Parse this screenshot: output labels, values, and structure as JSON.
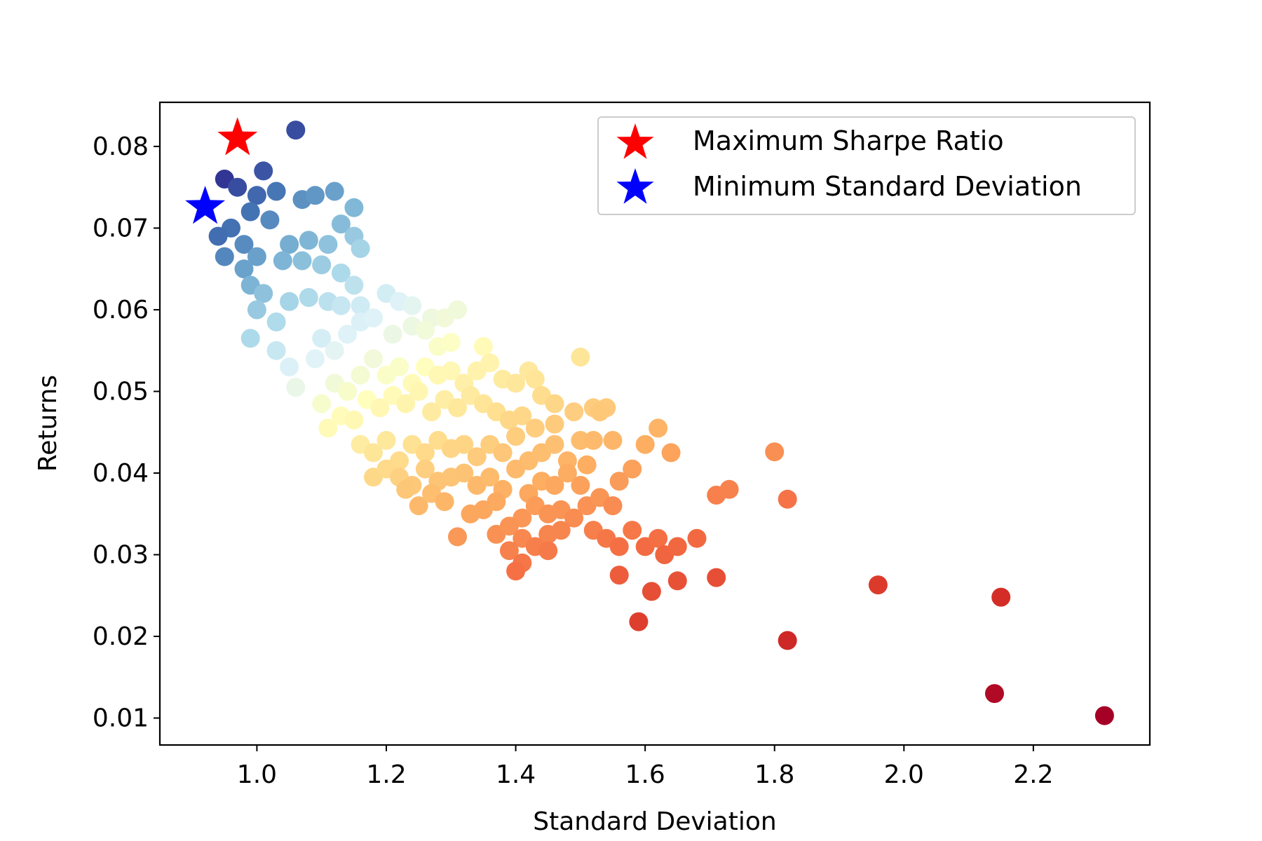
{
  "chart_data": {
    "type": "scatter",
    "title": "",
    "xlabel": "Standard Deviation",
    "ylabel": "Returns",
    "xlim": [
      0.85,
      2.38
    ],
    "ylim": [
      0.0067,
      0.0854
    ],
    "xticks": [
      1.0,
      1.2,
      1.4,
      1.6,
      1.8,
      2.0,
      2.2
    ],
    "xtick_labels": [
      "1.0",
      "1.2",
      "1.4",
      "1.6",
      "1.8",
      "2.0",
      "2.2"
    ],
    "yticks": [
      0.01,
      0.02,
      0.03,
      0.04,
      0.05,
      0.06,
      0.07,
      0.08
    ],
    "ytick_labels": [
      "0.01",
      "0.02",
      "0.03",
      "0.04",
      "0.05",
      "0.06",
      "0.07",
      "0.08"
    ],
    "grid": false,
    "legend_position": "top-right",
    "colormap": "RdYlBu (colored by Sharpe ratio)",
    "portfolios": {
      "name": "",
      "points": [
        [
          1.06,
          0.082
        ],
        [
          0.95,
          0.076
        ],
        [
          1.01,
          0.077
        ],
        [
          0.97,
          0.075
        ],
        [
          1.0,
          0.074
        ],
        [
          1.03,
          0.0745
        ],
        [
          0.99,
          0.072
        ],
        [
          0.96,
          0.07
        ],
        [
          0.94,
          0.069
        ],
        [
          0.95,
          0.0665
        ],
        [
          0.98,
          0.068
        ],
        [
          1.02,
          0.071
        ],
        [
          1.07,
          0.0735
        ],
        [
          1.09,
          0.074
        ],
        [
          1.12,
          0.0745
        ],
        [
          1.15,
          0.0725
        ],
        [
          1.13,
          0.0705
        ],
        [
          1.15,
          0.069
        ],
        [
          1.11,
          0.068
        ],
        [
          1.16,
          0.0675
        ],
        [
          1.08,
          0.0685
        ],
        [
          1.05,
          0.068
        ],
        [
          1.0,
          0.0665
        ],
        [
          0.98,
          0.065
        ],
        [
          1.04,
          0.066
        ],
        [
          1.07,
          0.066
        ],
        [
          1.1,
          0.0655
        ],
        [
          1.13,
          0.0645
        ],
        [
          1.15,
          0.063
        ],
        [
          0.99,
          0.063
        ],
        [
          1.01,
          0.062
        ],
        [
          1.0,
          0.06
        ],
        [
          0.99,
          0.0565
        ],
        [
          1.03,
          0.0585
        ],
        [
          1.05,
          0.061
        ],
        [
          1.08,
          0.0615
        ],
        [
          1.11,
          0.061
        ],
        [
          1.13,
          0.0605
        ],
        [
          1.16,
          0.0605
        ],
        [
          1.03,
          0.055
        ],
        [
          1.05,
          0.053
        ],
        [
          1.06,
          0.0505
        ],
        [
          1.09,
          0.054
        ],
        [
          1.1,
          0.0565
        ],
        [
          1.12,
          0.055
        ],
        [
          1.14,
          0.057
        ],
        [
          1.16,
          0.0585
        ],
        [
          1.2,
          0.062
        ],
        [
          1.22,
          0.061
        ],
        [
          1.24,
          0.0605
        ],
        [
          1.27,
          0.059
        ],
        [
          1.29,
          0.059
        ],
        [
          1.31,
          0.06
        ],
        [
          1.18,
          0.059
        ],
        [
          1.21,
          0.057
        ],
        [
          1.24,
          0.058
        ],
        [
          1.26,
          0.0575
        ],
        [
          1.28,
          0.0555
        ],
        [
          1.3,
          0.056
        ],
        [
          1.35,
          0.0555
        ],
        [
          1.5,
          0.0542
        ],
        [
          1.1,
          0.0485
        ],
        [
          1.12,
          0.051
        ],
        [
          1.14,
          0.05
        ],
        [
          1.16,
          0.052
        ],
        [
          1.18,
          0.054
        ],
        [
          1.2,
          0.052
        ],
        [
          1.22,
          0.053
        ],
        [
          1.24,
          0.051
        ],
        [
          1.26,
          0.053
        ],
        [
          1.28,
          0.052
        ],
        [
          1.3,
          0.0525
        ],
        [
          1.32,
          0.051
        ],
        [
          1.34,
          0.0525
        ],
        [
          1.36,
          0.0535
        ],
        [
          1.38,
          0.0515
        ],
        [
          1.4,
          0.051
        ],
        [
          1.42,
          0.0525
        ],
        [
          1.43,
          0.0515
        ],
        [
          1.44,
          0.0495
        ],
        [
          1.11,
          0.0455
        ],
        [
          1.13,
          0.047
        ],
        [
          1.15,
          0.0465
        ],
        [
          1.17,
          0.049
        ],
        [
          1.19,
          0.048
        ],
        [
          1.21,
          0.0495
        ],
        [
          1.23,
          0.0485
        ],
        [
          1.25,
          0.05
        ],
        [
          1.27,
          0.0475
        ],
        [
          1.29,
          0.049
        ],
        [
          1.31,
          0.048
        ],
        [
          1.33,
          0.0495
        ],
        [
          1.35,
          0.0485
        ],
        [
          1.37,
          0.0475
        ],
        [
          1.39,
          0.0465
        ],
        [
          1.41,
          0.047
        ],
        [
          1.43,
          0.0455
        ],
        [
          1.46,
          0.0485
        ],
        [
          1.46,
          0.046
        ],
        [
          1.49,
          0.0475
        ],
        [
          1.52,
          0.048
        ],
        [
          1.54,
          0.048
        ],
        [
          1.53,
          0.0475
        ],
        [
          1.16,
          0.0435
        ],
        [
          1.18,
          0.0425
        ],
        [
          1.2,
          0.044
        ],
        [
          1.22,
          0.0415
        ],
        [
          1.24,
          0.0435
        ],
        [
          1.26,
          0.0425
        ],
        [
          1.28,
          0.044
        ],
        [
          1.3,
          0.043
        ],
        [
          1.32,
          0.0435
        ],
        [
          1.34,
          0.042
        ],
        [
          1.36,
          0.0435
        ],
        [
          1.38,
          0.0425
        ],
        [
          1.4,
          0.0445
        ],
        [
          1.42,
          0.0415
        ],
        [
          1.44,
          0.0425
        ],
        [
          1.46,
          0.0435
        ],
        [
          1.48,
          0.0415
        ],
        [
          1.5,
          0.044
        ],
        [
          1.52,
          0.044
        ],
        [
          1.55,
          0.044
        ],
        [
          1.6,
          0.0435
        ],
        [
          1.62,
          0.0455
        ],
        [
          1.64,
          0.0425
        ],
        [
          1.18,
          0.0395
        ],
        [
          1.2,
          0.0405
        ],
        [
          1.22,
          0.0395
        ],
        [
          1.24,
          0.0385
        ],
        [
          1.26,
          0.0405
        ],
        [
          1.28,
          0.039
        ],
        [
          1.3,
          0.0395
        ],
        [
          1.32,
          0.04
        ],
        [
          1.34,
          0.0385
        ],
        [
          1.36,
          0.0395
        ],
        [
          1.38,
          0.038
        ],
        [
          1.4,
          0.0405
        ],
        [
          1.42,
          0.0375
        ],
        [
          1.44,
          0.039
        ],
        [
          1.46,
          0.0385
        ],
        [
          1.48,
          0.04
        ],
        [
          1.5,
          0.0385
        ],
        [
          1.51,
          0.041
        ],
        [
          1.56,
          0.039
        ],
        [
          1.58,
          0.0405
        ],
        [
          1.23,
          0.038
        ],
        [
          1.25,
          0.036
        ],
        [
          1.27,
          0.0375
        ],
        [
          1.29,
          0.0365
        ],
        [
          1.33,
          0.035
        ],
        [
          1.35,
          0.0355
        ],
        [
          1.37,
          0.0365
        ],
        [
          1.41,
          0.0345
        ],
        [
          1.43,
          0.036
        ],
        [
          1.45,
          0.035
        ],
        [
          1.47,
          0.0355
        ],
        [
          1.49,
          0.0345
        ],
        [
          1.51,
          0.036
        ],
        [
          1.53,
          0.037
        ],
        [
          1.55,
          0.036
        ],
        [
          1.31,
          0.0322
        ],
        [
          1.37,
          0.0325
        ],
        [
          1.39,
          0.0335
        ],
        [
          1.41,
          0.032
        ],
        [
          1.45,
          0.0325
        ],
        [
          1.47,
          0.033
        ],
        [
          1.52,
          0.033
        ],
        [
          1.54,
          0.032
        ],
        [
          1.39,
          0.0305
        ],
        [
          1.41,
          0.029
        ],
        [
          1.43,
          0.031
        ],
        [
          1.45,
          0.0305
        ],
        [
          1.4,
          0.028
        ],
        [
          1.56,
          0.031
        ],
        [
          1.58,
          0.033
        ],
        [
          1.6,
          0.031
        ],
        [
          1.62,
          0.032
        ],
        [
          1.63,
          0.03
        ],
        [
          1.65,
          0.031
        ],
        [
          1.68,
          0.032
        ],
        [
          1.56,
          0.0275
        ],
        [
          1.61,
          0.0255
        ],
        [
          1.65,
          0.0268
        ],
        [
          1.71,
          0.0272
        ],
        [
          1.59,
          0.0218
        ],
        [
          1.71,
          0.0373
        ],
        [
          1.73,
          0.038
        ],
        [
          1.8,
          0.0426
        ],
        [
          1.82,
          0.0368
        ],
        [
          1.96,
          0.0263
        ],
        [
          2.15,
          0.0248
        ],
        [
          1.82,
          0.0195
        ],
        [
          2.14,
          0.013
        ],
        [
          2.31,
          0.0103
        ]
      ]
    },
    "markers": [
      {
        "name": "Maximum Sharpe Ratio",
        "x": 0.97,
        "y": 0.081,
        "color": "#ff0000",
        "marker": "star"
      },
      {
        "name": "Minimum Standard Deviation",
        "x": 0.92,
        "y": 0.0726,
        "color": "#0000ff",
        "marker": "star"
      }
    ]
  }
}
